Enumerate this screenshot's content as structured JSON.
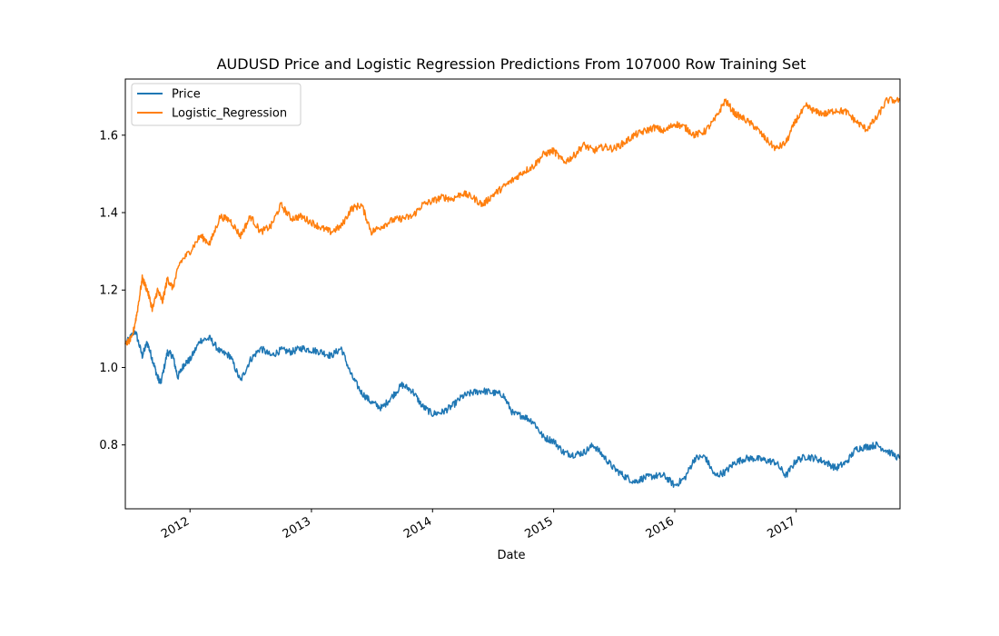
{
  "chart_data": {
    "type": "line",
    "title": "AUDUSD Price and Logistic Regression Predictions From 107000 Row Training Set",
    "xlabel": "Date",
    "ylabel": "",
    "xlim": [
      "2011-06-20",
      "2017-11-10"
    ],
    "ylim": [
      0.635,
      1.745
    ],
    "x_ticks": [
      {
        "date": "2012-01-01",
        "label": "2012"
      },
      {
        "date": "2013-01-01",
        "label": "2013"
      },
      {
        "date": "2014-01-01",
        "label": "2014"
      },
      {
        "date": "2015-01-01",
        "label": "2015"
      },
      {
        "date": "2016-01-01",
        "label": "2016"
      },
      {
        "date": "2017-01-01",
        "label": "2017"
      }
    ],
    "y_ticks": [
      0.8,
      1.0,
      1.2,
      1.4,
      1.6
    ],
    "grid": false,
    "legend": "top-left",
    "series": [
      {
        "name": "Price",
        "color": "#1f77b4",
        "points": [
          [
            "2011-06-20",
            1.06
          ],
          [
            "2011-07-20",
            1.095
          ],
          [
            "2011-08-10",
            1.03
          ],
          [
            "2011-08-25",
            1.065
          ],
          [
            "2011-09-10",
            1.02
          ],
          [
            "2011-09-25",
            0.975
          ],
          [
            "2011-10-05",
            0.96
          ],
          [
            "2011-10-25",
            1.04
          ],
          [
            "2011-11-10",
            1.03
          ],
          [
            "2011-11-25",
            0.975
          ],
          [
            "2011-12-15",
            1.01
          ],
          [
            "2012-01-01",
            1.02
          ],
          [
            "2012-02-01",
            1.07
          ],
          [
            "2012-03-01",
            1.075
          ],
          [
            "2012-04-01",
            1.04
          ],
          [
            "2012-05-01",
            1.03
          ],
          [
            "2012-06-01",
            0.965
          ],
          [
            "2012-07-01",
            1.02
          ],
          [
            "2012-08-01",
            1.05
          ],
          [
            "2012-09-01",
            1.03
          ],
          [
            "2012-10-01",
            1.045
          ],
          [
            "2012-11-01",
            1.04
          ],
          [
            "2012-12-01",
            1.05
          ],
          [
            "2013-01-01",
            1.045
          ],
          [
            "2013-02-01",
            1.04
          ],
          [
            "2013-03-01",
            1.03
          ],
          [
            "2013-04-01",
            1.05
          ],
          [
            "2013-05-01",
            0.98
          ],
          [
            "2013-06-01",
            0.935
          ],
          [
            "2013-07-01",
            0.91
          ],
          [
            "2013-08-01",
            0.895
          ],
          [
            "2013-09-01",
            0.925
          ],
          [
            "2013-10-01",
            0.955
          ],
          [
            "2013-11-01",
            0.94
          ],
          [
            "2013-12-01",
            0.9
          ],
          [
            "2014-01-01",
            0.88
          ],
          [
            "2014-02-01",
            0.885
          ],
          [
            "2014-03-01",
            0.9
          ],
          [
            "2014-04-01",
            0.925
          ],
          [
            "2014-05-01",
            0.935
          ],
          [
            "2014-06-01",
            0.94
          ],
          [
            "2014-07-01",
            0.935
          ],
          [
            "2014-08-01",
            0.93
          ],
          [
            "2014-09-01",
            0.88
          ],
          [
            "2014-10-01",
            0.875
          ],
          [
            "2014-11-01",
            0.86
          ],
          [
            "2014-12-01",
            0.82
          ],
          [
            "2015-01-01",
            0.81
          ],
          [
            "2015-02-01",
            0.78
          ],
          [
            "2015-03-01",
            0.775
          ],
          [
            "2015-04-01",
            0.78
          ],
          [
            "2015-05-01",
            0.8
          ],
          [
            "2015-06-01",
            0.77
          ],
          [
            "2015-07-01",
            0.74
          ],
          [
            "2015-08-01",
            0.72
          ],
          [
            "2015-09-01",
            0.705
          ],
          [
            "2015-10-01",
            0.715
          ],
          [
            "2015-11-01",
            0.72
          ],
          [
            "2015-12-01",
            0.72
          ],
          [
            "2016-01-01",
            0.695
          ],
          [
            "2016-02-01",
            0.715
          ],
          [
            "2016-03-01",
            0.765
          ],
          [
            "2016-04-01",
            0.77
          ],
          [
            "2016-05-01",
            0.72
          ],
          [
            "2016-06-01",
            0.73
          ],
          [
            "2016-07-01",
            0.755
          ],
          [
            "2016-08-01",
            0.765
          ],
          [
            "2016-09-01",
            0.765
          ],
          [
            "2016-10-01",
            0.76
          ],
          [
            "2016-11-01",
            0.755
          ],
          [
            "2016-12-01",
            0.72
          ],
          [
            "2017-01-01",
            0.76
          ],
          [
            "2017-02-01",
            0.77
          ],
          [
            "2017-03-01",
            0.765
          ],
          [
            "2017-04-01",
            0.755
          ],
          [
            "2017-05-01",
            0.74
          ],
          [
            "2017-06-01",
            0.755
          ],
          [
            "2017-07-01",
            0.79
          ],
          [
            "2017-08-01",
            0.795
          ],
          [
            "2017-09-01",
            0.8
          ],
          [
            "2017-10-01",
            0.785
          ],
          [
            "2017-11-10",
            0.765
          ]
        ]
      },
      {
        "name": "Logistic_Regression",
        "color": "#ff7f0e",
        "points": [
          [
            "2011-06-20",
            1.06
          ],
          [
            "2011-07-10",
            1.075
          ],
          [
            "2011-07-25",
            1.14
          ],
          [
            "2011-08-10",
            1.23
          ],
          [
            "2011-08-25",
            1.2
          ],
          [
            "2011-09-10",
            1.15
          ],
          [
            "2011-09-25",
            1.2
          ],
          [
            "2011-10-10",
            1.17
          ],
          [
            "2011-10-25",
            1.23
          ],
          [
            "2011-11-10",
            1.205
          ],
          [
            "2011-12-01",
            1.27
          ],
          [
            "2012-01-01",
            1.3
          ],
          [
            "2012-02-01",
            1.34
          ],
          [
            "2012-03-01",
            1.32
          ],
          [
            "2012-04-01",
            1.39
          ],
          [
            "2012-05-01",
            1.38
          ],
          [
            "2012-06-01",
            1.34
          ],
          [
            "2012-07-01",
            1.39
          ],
          [
            "2012-08-01",
            1.35
          ],
          [
            "2012-09-01",
            1.365
          ],
          [
            "2012-10-01",
            1.42
          ],
          [
            "2012-11-01",
            1.385
          ],
          [
            "2012-12-01",
            1.39
          ],
          [
            "2013-01-01",
            1.375
          ],
          [
            "2013-02-01",
            1.36
          ],
          [
            "2013-03-01",
            1.35
          ],
          [
            "2013-04-01",
            1.365
          ],
          [
            "2013-05-01",
            1.41
          ],
          [
            "2013-06-01",
            1.42
          ],
          [
            "2013-07-01",
            1.35
          ],
          [
            "2013-08-01",
            1.365
          ],
          [
            "2013-09-01",
            1.38
          ],
          [
            "2013-10-01",
            1.385
          ],
          [
            "2013-11-01",
            1.39
          ],
          [
            "2013-12-01",
            1.42
          ],
          [
            "2014-01-01",
            1.43
          ],
          [
            "2014-02-01",
            1.44
          ],
          [
            "2014-03-01",
            1.435
          ],
          [
            "2014-04-01",
            1.45
          ],
          [
            "2014-05-01",
            1.44
          ],
          [
            "2014-06-01",
            1.42
          ],
          [
            "2014-07-01",
            1.445
          ],
          [
            "2014-08-01",
            1.465
          ],
          [
            "2014-09-01",
            1.485
          ],
          [
            "2014-10-01",
            1.505
          ],
          [
            "2014-11-01",
            1.52
          ],
          [
            "2014-12-01",
            1.55
          ],
          [
            "2015-01-01",
            1.56
          ],
          [
            "2015-02-01",
            1.53
          ],
          [
            "2015-03-01",
            1.545
          ],
          [
            "2015-04-01",
            1.575
          ],
          [
            "2015-05-01",
            1.56
          ],
          [
            "2015-06-01",
            1.57
          ],
          [
            "2015-07-01",
            1.565
          ],
          [
            "2015-08-01",
            1.58
          ],
          [
            "2015-09-01",
            1.6
          ],
          [
            "2015-10-01",
            1.61
          ],
          [
            "2015-11-01",
            1.62
          ],
          [
            "2015-12-01",
            1.61
          ],
          [
            "2016-01-01",
            1.63
          ],
          [
            "2016-02-01",
            1.62
          ],
          [
            "2016-03-01",
            1.6
          ],
          [
            "2016-04-01",
            1.61
          ],
          [
            "2016-05-01",
            1.64
          ],
          [
            "2016-06-01",
            1.69
          ],
          [
            "2016-07-01",
            1.655
          ],
          [
            "2016-08-01",
            1.64
          ],
          [
            "2016-09-01",
            1.62
          ],
          [
            "2016-10-01",
            1.59
          ],
          [
            "2016-11-01",
            1.565
          ],
          [
            "2016-12-01",
            1.58
          ],
          [
            "2017-01-01",
            1.64
          ],
          [
            "2017-02-01",
            1.675
          ],
          [
            "2017-03-01",
            1.66
          ],
          [
            "2017-04-01",
            1.655
          ],
          [
            "2017-05-01",
            1.665
          ],
          [
            "2017-06-01",
            1.66
          ],
          [
            "2017-07-01",
            1.635
          ],
          [
            "2017-08-01",
            1.615
          ],
          [
            "2017-09-01",
            1.645
          ],
          [
            "2017-10-01",
            1.69
          ],
          [
            "2017-11-10",
            1.69
          ]
        ]
      }
    ]
  }
}
